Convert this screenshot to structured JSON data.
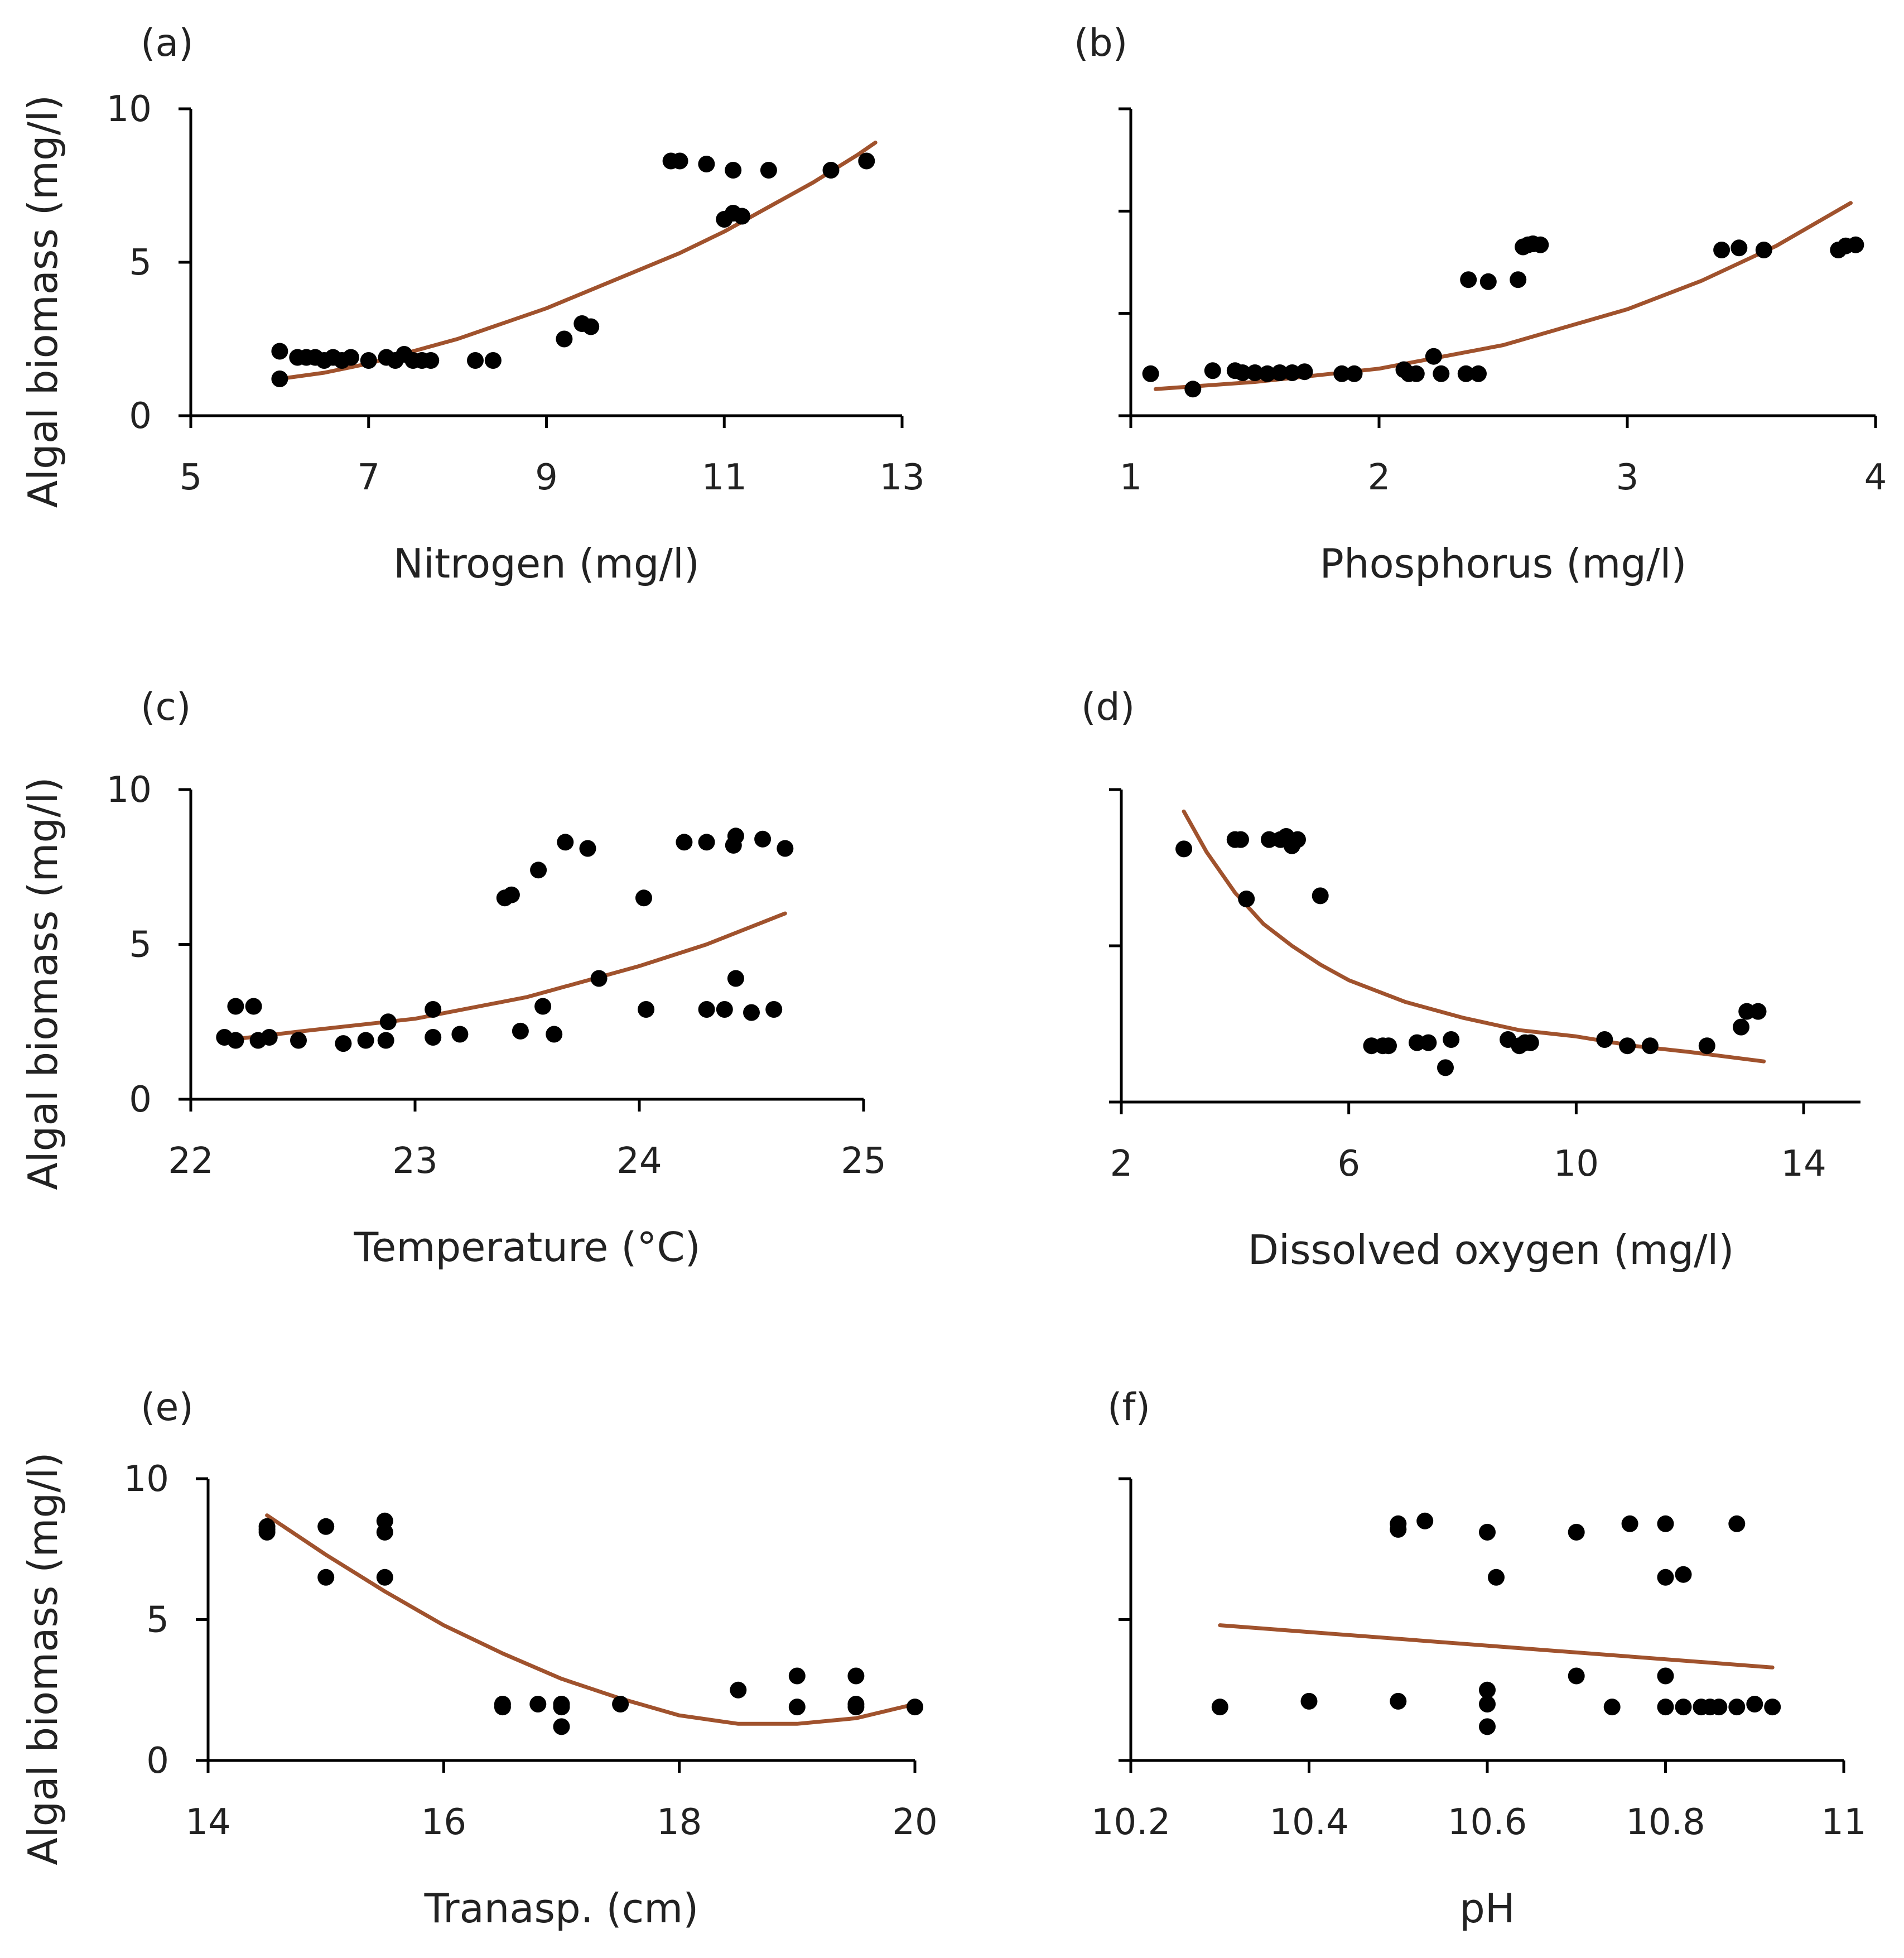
{
  "colors": {
    "trend": "#a0522d",
    "point": "#000000",
    "axis": "#000000"
  },
  "chart_data": [
    {
      "type": "scatter",
      "panel": "(a)",
      "xlabel": "Nitrogen (mg/l)",
      "ylabel": "Algal biomass (mg/l)",
      "xlim": [
        5,
        13
      ],
      "ylim": [
        0,
        10
      ],
      "xticks": [
        5,
        7,
        9,
        11,
        13
      ],
      "xtick_labels": [
        "5",
        "7",
        "9",
        "11",
        "13"
      ],
      "yticks": [
        0,
        5,
        10
      ],
      "ytick_labels": [
        "0",
        "5",
        "10"
      ],
      "points": [
        [
          6.0,
          2.1
        ],
        [
          6.0,
          1.2
        ],
        [
          6.2,
          1.9
        ],
        [
          6.3,
          1.9
        ],
        [
          6.4,
          1.9
        ],
        [
          6.5,
          1.8
        ],
        [
          6.6,
          1.9
        ],
        [
          6.7,
          1.8
        ],
        [
          6.8,
          1.9
        ],
        [
          7.0,
          1.8
        ],
        [
          7.2,
          1.9
        ],
        [
          7.3,
          1.8
        ],
        [
          7.4,
          2.0
        ],
        [
          7.5,
          1.8
        ],
        [
          7.6,
          1.8
        ],
        [
          7.7,
          1.8
        ],
        [
          8.2,
          1.8
        ],
        [
          8.4,
          1.8
        ],
        [
          9.2,
          2.5
        ],
        [
          9.4,
          3.0
        ],
        [
          9.5,
          2.9
        ],
        [
          10.4,
          8.3
        ],
        [
          10.5,
          8.3
        ],
        [
          10.8,
          8.2
        ],
        [
          11.0,
          6.4
        ],
        [
          11.1,
          6.6
        ],
        [
          11.1,
          8.0
        ],
        [
          11.2,
          6.5
        ],
        [
          11.5,
          8.0
        ],
        [
          12.2,
          8.0
        ],
        [
          12.6,
          8.3
        ]
      ],
      "trend": [
        [
          6.0,
          1.2
        ],
        [
          6.5,
          1.4
        ],
        [
          7.0,
          1.7
        ],
        [
          7.5,
          2.1
        ],
        [
          8.0,
          2.5
        ],
        [
          8.5,
          3.0
        ],
        [
          9.0,
          3.5
        ],
        [
          9.5,
          4.1
        ],
        [
          10.0,
          4.7
        ],
        [
          10.5,
          5.3
        ],
        [
          11.0,
          6.0
        ],
        [
          11.5,
          6.8
        ],
        [
          12.0,
          7.6
        ],
        [
          12.5,
          8.5
        ],
        [
          12.7,
          8.9
        ]
      ]
    },
    {
      "type": "scatter",
      "panel": "(b)",
      "xlabel": "Phosphorus (mg/l)",
      "ylabel": "",
      "xlim": [
        1,
        4
      ],
      "ylim": [
        0,
        3
      ],
      "xticks": [
        1,
        2,
        3,
        4
      ],
      "xtick_labels": [
        "1",
        "2",
        "3",
        "4"
      ],
      "yticks": [
        0,
        1,
        2,
        3
      ],
      "ytick_labels": [
        "",
        "",
        "",
        ""
      ],
      "points": [
        [
          1.08,
          0.41
        ],
        [
          1.25,
          0.26
        ],
        [
          1.33,
          0.44
        ],
        [
          1.42,
          0.44
        ],
        [
          1.45,
          0.42
        ],
        [
          1.5,
          0.42
        ],
        [
          1.55,
          0.41
        ],
        [
          1.6,
          0.42
        ],
        [
          1.65,
          0.42
        ],
        [
          1.7,
          0.43
        ],
        [
          1.85,
          0.41
        ],
        [
          1.9,
          0.41
        ],
        [
          2.1,
          0.45
        ],
        [
          2.12,
          0.41
        ],
        [
          2.15,
          0.41
        ],
        [
          2.22,
          0.58
        ],
        [
          2.25,
          0.41
        ],
        [
          2.35,
          0.41
        ],
        [
          2.4,
          0.41
        ],
        [
          2.36,
          1.33
        ],
        [
          2.44,
          1.31
        ],
        [
          2.56,
          1.33
        ],
        [
          2.58,
          1.65
        ],
        [
          2.6,
          1.67
        ],
        [
          2.62,
          1.68
        ],
        [
          2.65,
          1.67
        ],
        [
          3.38,
          1.62
        ],
        [
          3.45,
          1.64
        ],
        [
          3.55,
          1.62
        ],
        [
          3.85,
          1.62
        ],
        [
          3.88,
          1.66
        ],
        [
          3.92,
          1.67
        ]
      ],
      "trend": [
        [
          1.1,
          0.26
        ],
        [
          1.5,
          0.33
        ],
        [
          2.0,
          0.46
        ],
        [
          2.5,
          0.69
        ],
        [
          3.0,
          1.04
        ],
        [
          3.3,
          1.32
        ],
        [
          3.6,
          1.66
        ],
        [
          3.9,
          2.08
        ]
      ]
    },
    {
      "type": "scatter",
      "panel": "(c)",
      "xlabel": "Temperature (°C)",
      "ylabel": "Algal biomass (mg/l)",
      "xlim": [
        22,
        25
      ],
      "ylim": [
        0,
        10
      ],
      "xticks": [
        22,
        23,
        24,
        25
      ],
      "xtick_labels": [
        "22",
        "23",
        "24",
        "25"
      ],
      "yticks": [
        0,
        5,
        10
      ],
      "ytick_labels": [
        "0",
        "5",
        "10"
      ],
      "points": [
        [
          22.15,
          2.0
        ],
        [
          22.2,
          1.9
        ],
        [
          22.2,
          3.0
        ],
        [
          22.28,
          3.0
        ],
        [
          22.3,
          1.9
        ],
        [
          22.35,
          2.0
        ],
        [
          22.48,
          1.9
        ],
        [
          22.68,
          1.8
        ],
        [
          22.78,
          1.9
        ],
        [
          22.87,
          1.9
        ],
        [
          22.88,
          2.5
        ],
        [
          23.08,
          2.0
        ],
        [
          23.08,
          2.9
        ],
        [
          23.2,
          2.1
        ],
        [
          23.4,
          6.5
        ],
        [
          23.43,
          6.6
        ],
        [
          23.47,
          2.2
        ],
        [
          23.55,
          7.4
        ],
        [
          23.57,
          3.0
        ],
        [
          23.62,
          2.1
        ],
        [
          23.67,
          8.3
        ],
        [
          23.77,
          8.1
        ],
        [
          23.82,
          3.9
        ],
        [
          24.02,
          6.5
        ],
        [
          24.03,
          2.9
        ],
        [
          24.2,
          8.3
        ],
        [
          24.3,
          8.3
        ],
        [
          24.3,
          2.9
        ],
        [
          24.38,
          2.9
        ],
        [
          24.42,
          8.2
        ],
        [
          24.43,
          8.5
        ],
        [
          24.43,
          3.9
        ],
        [
          24.5,
          2.8
        ],
        [
          24.55,
          8.4
        ],
        [
          24.6,
          2.9
        ],
        [
          24.65,
          8.1
        ]
      ],
      "trend": [
        [
          22.15,
          1.9
        ],
        [
          22.5,
          2.2
        ],
        [
          23.0,
          2.6
        ],
        [
          23.5,
          3.3
        ],
        [
          24.0,
          4.3
        ],
        [
          24.3,
          5.0
        ],
        [
          24.65,
          6.0
        ]
      ]
    },
    {
      "type": "scatter",
      "panel": "(d)",
      "xlabel": "Dissolved oxygen (mg/l)",
      "ylabel": "",
      "xlim": [
        2,
        15
      ],
      "ylim": [
        0,
        10
      ],
      "xticks": [
        2,
        6,
        10,
        14
      ],
      "xtick_labels": [
        "2",
        "6",
        "10",
        "14"
      ],
      "yticks": [
        0,
        5,
        10
      ],
      "ytick_labels": [
        "",
        "",
        ""
      ],
      "points": [
        [
          3.1,
          8.1
        ],
        [
          4.0,
          8.4
        ],
        [
          4.1,
          8.4
        ],
        [
          4.2,
          6.5
        ],
        [
          4.6,
          8.4
        ],
        [
          4.8,
          8.4
        ],
        [
          4.9,
          8.5
        ],
        [
          5.0,
          8.3
        ],
        [
          5.1,
          8.4
        ],
        [
          5.0,
          8.2
        ],
        [
          5.5,
          6.6
        ],
        [
          6.4,
          1.8
        ],
        [
          6.6,
          1.8
        ],
        [
          6.7,
          1.8
        ],
        [
          7.2,
          1.9
        ],
        [
          7.4,
          1.9
        ],
        [
          7.7,
          1.1
        ],
        [
          7.8,
          2.0
        ],
        [
          8.8,
          2.0
        ],
        [
          9.0,
          1.8
        ],
        [
          9.1,
          1.9
        ],
        [
          9.2,
          1.9
        ],
        [
          10.5,
          2.0
        ],
        [
          10.9,
          1.8
        ],
        [
          11.3,
          1.8
        ],
        [
          12.3,
          1.8
        ],
        [
          12.9,
          2.4
        ],
        [
          13.0,
          2.9
        ],
        [
          13.2,
          2.9
        ]
      ],
      "trend": [
        [
          3.1,
          9.3
        ],
        [
          3.5,
          8.0
        ],
        [
          4.0,
          6.7
        ],
        [
          4.5,
          5.7
        ],
        [
          5.0,
          5.0
        ],
        [
          5.5,
          4.4
        ],
        [
          6.0,
          3.9
        ],
        [
          7.0,
          3.2
        ],
        [
          8.0,
          2.7
        ],
        [
          9.0,
          2.3
        ],
        [
          10.0,
          2.1
        ],
        [
          11.0,
          1.8
        ],
        [
          12.0,
          1.6
        ],
        [
          13.3,
          1.3
        ]
      ]
    },
    {
      "type": "scatter",
      "panel": "(e)",
      "xlabel": "Tranasp. (cm)",
      "ylabel": "Algal biomass (mg/l)",
      "xlim": [
        14,
        20
      ],
      "ylim": [
        0,
        10
      ],
      "xticks": [
        14,
        16,
        18,
        20
      ],
      "xtick_labels": [
        "14",
        "16",
        "18",
        "20"
      ],
      "yticks": [
        0,
        5,
        10
      ],
      "ytick_labels": [
        "0",
        "5",
        "10"
      ],
      "points": [
        [
          14.5,
          8.1
        ],
        [
          14.5,
          8.3
        ],
        [
          14.5,
          8.2
        ],
        [
          15.0,
          8.3
        ],
        [
          15.0,
          6.5
        ],
        [
          15.5,
          8.5
        ],
        [
          15.5,
          8.1
        ],
        [
          15.5,
          6.5
        ],
        [
          16.5,
          2.0
        ],
        [
          16.5,
          1.9
        ],
        [
          16.8,
          2.0
        ],
        [
          17.0,
          1.9
        ],
        [
          17.0,
          1.2
        ],
        [
          17.0,
          2.0
        ],
        [
          17.5,
          2.0
        ],
        [
          18.5,
          2.5
        ],
        [
          19.0,
          3.0
        ],
        [
          19.0,
          1.9
        ],
        [
          19.5,
          3.0
        ],
        [
          19.5,
          2.0
        ],
        [
          19.5,
          1.9
        ],
        [
          20.0,
          1.9
        ]
      ],
      "trend": [
        [
          14.5,
          8.7
        ],
        [
          15.0,
          7.3
        ],
        [
          15.5,
          6.0
        ],
        [
          16.0,
          4.8
        ],
        [
          16.5,
          3.8
        ],
        [
          17.0,
          2.9
        ],
        [
          17.5,
          2.2
        ],
        [
          18.0,
          1.6
        ],
        [
          18.5,
          1.3
        ],
        [
          19.0,
          1.3
        ],
        [
          19.5,
          1.5
        ],
        [
          20.0,
          2.0
        ]
      ]
    },
    {
      "type": "scatter",
      "panel": "(f)",
      "xlabel": "pH",
      "ylabel": "",
      "xlim": [
        10.2,
        11
      ],
      "ylim": [
        0,
        10
      ],
      "xticks": [
        10.2,
        10.4,
        10.6,
        10.8,
        11
      ],
      "xtick_labels": [
        "10.2",
        "10.4",
        "10.6",
        "10.8",
        "11"
      ],
      "yticks": [
        0,
        5,
        10
      ],
      "ytick_labels": [
        "",
        "",
        ""
      ],
      "points": [
        [
          10.3,
          1.9
        ],
        [
          10.4,
          2.1
        ],
        [
          10.5,
          2.1
        ],
        [
          10.5,
          8.4
        ],
        [
          10.5,
          8.2
        ],
        [
          10.53,
          8.5
        ],
        [
          10.6,
          8.1
        ],
        [
          10.6,
          2.5
        ],
        [
          10.6,
          2.0
        ],
        [
          10.6,
          1.2
        ],
        [
          10.61,
          6.5
        ],
        [
          10.7,
          8.1
        ],
        [
          10.7,
          3.0
        ],
        [
          10.74,
          1.9
        ],
        [
          10.76,
          8.4
        ],
        [
          10.8,
          8.4
        ],
        [
          10.8,
          6.5
        ],
        [
          10.8,
          3.0
        ],
        [
          10.82,
          6.6
        ],
        [
          10.8,
          1.9
        ],
        [
          10.82,
          1.9
        ],
        [
          10.84,
          1.9
        ],
        [
          10.85,
          1.9
        ],
        [
          10.86,
          1.9
        ],
        [
          10.88,
          1.9
        ],
        [
          10.88,
          8.4
        ],
        [
          10.9,
          2.0
        ],
        [
          10.92,
          1.9
        ]
      ],
      "trend": [
        [
          10.3,
          4.8
        ],
        [
          10.92,
          3.3
        ]
      ]
    }
  ]
}
